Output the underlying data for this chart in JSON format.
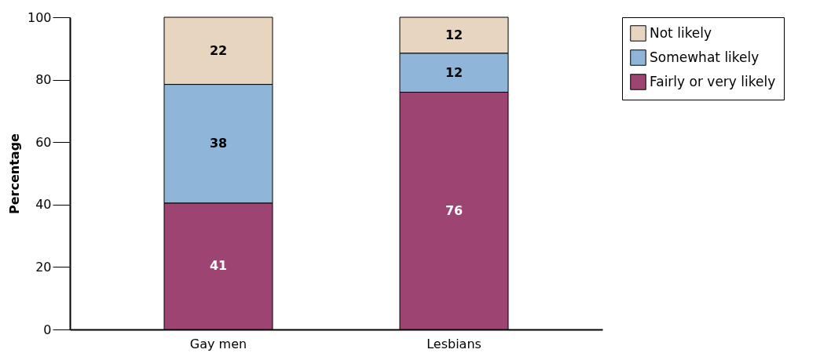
{
  "chart_data": {
    "type": "bar",
    "stacked": true,
    "ylabel": "Percentage",
    "categories": [
      "Gay men",
      "Lesbians"
    ],
    "series": [
      {
        "name": "Fairly or very likely",
        "color": "#9e4472",
        "values": [
          40.5,
          76
        ],
        "value_labels": [
          "41",
          "76"
        ]
      },
      {
        "name": "Somewhat likely",
        "color": "#8fb6d9",
        "values": [
          38,
          12.5
        ],
        "value_labels": [
          "38",
          "12"
        ]
      },
      {
        "name": "Not likely",
        "color": "#e8d5bf",
        "values": [
          21.5,
          11.5
        ],
        "value_labels": [
          "22",
          "12"
        ]
      }
    ],
    "ylim": [
      0,
      100
    ],
    "yticks": [
      0,
      20,
      40,
      60,
      80,
      100
    ],
    "grid": false,
    "legend": "top right"
  }
}
